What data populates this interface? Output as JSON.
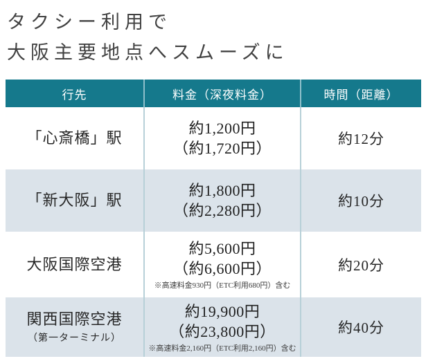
{
  "title": {
    "line1": "タクシー利用で",
    "line2": "大阪主要地点へスムーズに"
  },
  "colors": {
    "header_bg": "#15798c",
    "row_alt_bg": "#dbe3ea",
    "divider": "#b7d0d8",
    "header_divider": "#8fc0cb",
    "title_text": "#414141",
    "body_text": "#262626"
  },
  "table": {
    "headers": {
      "destination": "行先",
      "fare": "料金（深夜料金）",
      "time": "時間（距離）"
    },
    "rows": [
      {
        "destination": "「心斎橋」駅",
        "destination_sub": "",
        "fare": "約1,200円",
        "fare_night": "（約1,720円）",
        "note": "",
        "time": "約12分"
      },
      {
        "destination": "「新大阪」駅",
        "destination_sub": "",
        "fare": "約1,800円",
        "fare_night": "（約2,280円）",
        "note": "",
        "time": "約10分"
      },
      {
        "destination": "大阪国際空港",
        "destination_sub": "",
        "fare": "約5,600円",
        "fare_night": "（約6,600円）",
        "note": "※高速料金930円（ETC利用680円）含む",
        "time": "約20分"
      },
      {
        "destination": "関西国際空港",
        "destination_sub": "（第一ターミナル）",
        "fare": "約19,900円",
        "fare_night": "（約23,800円）",
        "note": "※高速料金2,160円（ETC利用2,160円）含む",
        "time": "約40分"
      }
    ]
  }
}
